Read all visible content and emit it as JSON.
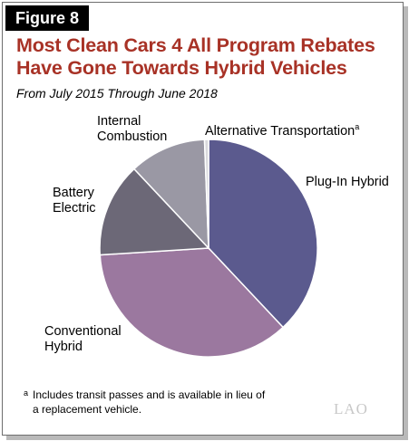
{
  "figure_label": "Figure 8",
  "title_lines": [
    "Most Clean Cars 4 All Program Rebates",
    "Have Gone Towards Hybrid Vehicles"
  ],
  "subtitle": "From July 2015 Through June 2018",
  "chart_data": {
    "type": "pie",
    "title": "Most Clean Cars 4 All Program Rebates Have Gone Towards Hybrid Vehicles",
    "subtitle": "From July 2015 Through June 2018",
    "slices": [
      {
        "label": "Plug-In Hybrid",
        "value": 38,
        "color": "#5b5a8e"
      },
      {
        "label": "Conventional Hybrid",
        "value": 36,
        "color": "#9b789f"
      },
      {
        "label": "Battery Electric",
        "value": 14,
        "color": "#6c6877"
      },
      {
        "label": "Internal Combustion",
        "value": 11.4,
        "color": "#9a98a4"
      },
      {
        "label": "Alternative Transportation",
        "value": 0.6,
        "color": "#d9d9dc",
        "footnote_marker": "a"
      }
    ]
  },
  "labels": {
    "plugin": "Plug-In Hybrid",
    "conventional_1": "Conventional",
    "conventional_2": "Hybrid",
    "battery_1": "Battery",
    "battery_2": "Electric",
    "internal_1": "Internal",
    "internal_2": "Combustion",
    "alternative": "Alternative Transportation",
    "alternative_marker": "a"
  },
  "footnote": {
    "marker": "a",
    "line1": "Includes transit passes and is available in lieu of",
    "line2": "a replacement vehicle."
  },
  "logo_text": "LAO"
}
